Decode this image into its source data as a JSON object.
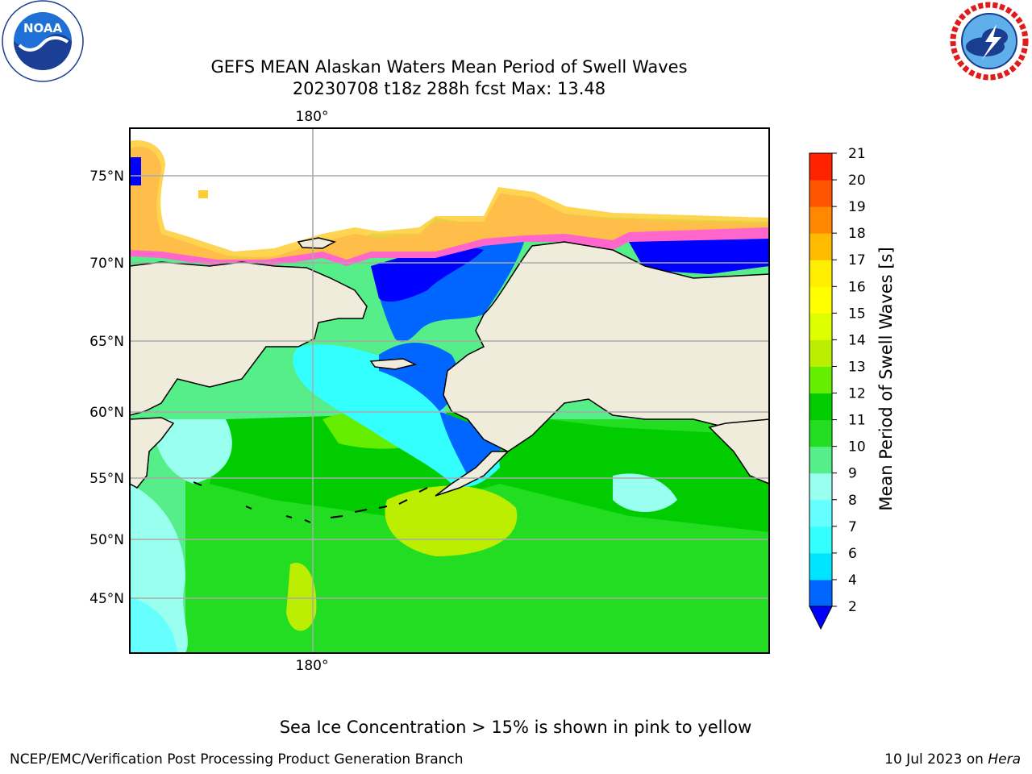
{
  "title": {
    "line1": "GEFS MEAN Alaskan Waters Mean Period of Swell Waves",
    "line2": "20230708 t18z 288h fcst   Max: 13.48"
  },
  "logos": {
    "left": {
      "icon": "noaa-logo",
      "text": "NOAA"
    },
    "right": {
      "icon": "nws-logo"
    }
  },
  "map": {
    "lon_label_top": "180°",
    "lon_label_bottom": "180°",
    "lat_labels": [
      "75°N",
      "70°N",
      "65°N",
      "60°N",
      "55°N",
      "50°N",
      "45°N"
    ],
    "land_color": "#efecdc",
    "ice_note_colors": [
      "#ff66cc",
      "#ffcc33",
      "#ffff66"
    ]
  },
  "colorbar": {
    "title": "Mean Period of Swell Waves [s]",
    "tick_labels": [
      "2",
      "4",
      "6",
      "7",
      "8",
      "9",
      "10",
      "11",
      "12",
      "13",
      "14",
      "15",
      "16",
      "17",
      "18",
      "19",
      "20",
      "21"
    ],
    "colors": [
      "#0066ff",
      "#00e5ff",
      "#33ffff",
      "#66ffff",
      "#99ffee",
      "#55ee88",
      "#22dd22",
      "#00cc00",
      "#66ee00",
      "#bbee00",
      "#ddff00",
      "#ffff00",
      "#ffee00",
      "#ffbb00",
      "#ff8800",
      "#ff5500",
      "#ff2200"
    ],
    "under_color": "#0000ff"
  },
  "footer": {
    "ice_note": "Sea Ice Concentration > 15% is shown in pink to yellow",
    "left": "NCEP/EMC/Verification Post Processing Product Generation Branch",
    "right_date": "10 Jul 2023 on ",
    "right_machine": "Hera"
  }
}
